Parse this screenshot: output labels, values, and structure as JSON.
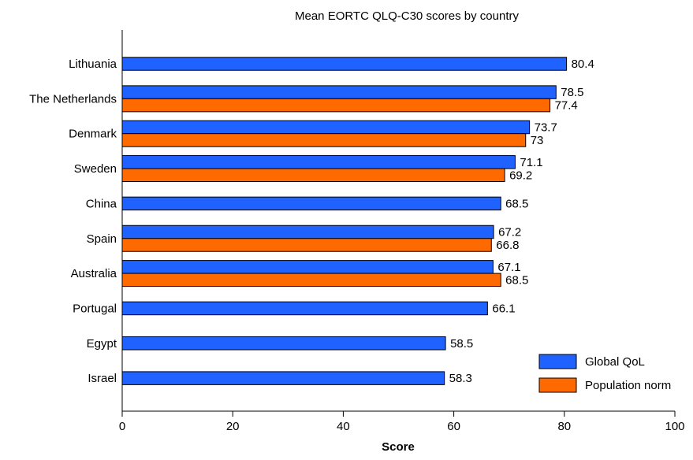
{
  "chart_data": {
    "type": "bar",
    "orientation": "horizontal",
    "title": "Mean EORTC QLQ-C30 scores by country",
    "xlabel": "Score",
    "ylabel": "",
    "xlim": [
      0,
      100
    ],
    "x_ticks": [
      0,
      20,
      40,
      60,
      80,
      100
    ],
    "grid": false,
    "legend_position": "bottom-right",
    "categories": [
      "Lithuania",
      "The Netherlands",
      "Denmark",
      "Sweden",
      "China",
      "Spain",
      "Australia",
      "Portugal",
      "Egypt",
      "Israel"
    ],
    "series": [
      {
        "name": "Global QoL",
        "color": "#1f62ff",
        "values": [
          80.4,
          78.5,
          73.7,
          71.1,
          68.5,
          67.2,
          67.1,
          66.1,
          58.5,
          58.3
        ]
      },
      {
        "name": "Population norm",
        "color": "#ff6a00",
        "values": [
          null,
          77.4,
          73,
          69.2,
          null,
          66.8,
          68.5,
          null,
          null,
          null
        ]
      }
    ]
  }
}
